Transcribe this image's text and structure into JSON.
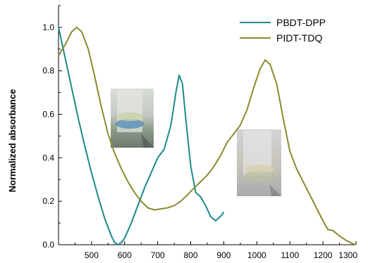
{
  "chart_data": {
    "type": "line",
    "xlabel": "",
    "ylabel": "Normalized absorbance",
    "xlim": [
      400,
      1300
    ],
    "ylim": [
      0,
      1.1
    ],
    "x_ticks": [
      "500",
      "600",
      "700",
      "800",
      "900",
      "1000",
      "1100",
      "1200",
      "1300"
    ],
    "y_ticks": [
      "0.0",
      "0.2",
      "0.4",
      "0.6",
      "0.8",
      "1.0"
    ],
    "legend_position": "top-right",
    "grid": false,
    "insets": [
      "vial-photo",
      "vial-photo"
    ],
    "series": [
      {
        "name": "PBDT-DPP",
        "color": "#1a8a8a",
        "points": [
          [
            400,
            1.0
          ],
          [
            420,
            0.86
          ],
          [
            440,
            0.72
          ],
          [
            460,
            0.58
          ],
          [
            480,
            0.45
          ],
          [
            500,
            0.33
          ],
          [
            520,
            0.22
          ],
          [
            540,
            0.12
          ],
          [
            560,
            0.04
          ],
          [
            570,
            0.01
          ],
          [
            580,
            0.0
          ],
          [
            590,
            0.01
          ],
          [
            600,
            0.03
          ],
          [
            620,
            0.1
          ],
          [
            640,
            0.18
          ],
          [
            660,
            0.26
          ],
          [
            680,
            0.33
          ],
          [
            700,
            0.4
          ],
          [
            720,
            0.44
          ],
          [
            740,
            0.55
          ],
          [
            755,
            0.7
          ],
          [
            765,
            0.78
          ],
          [
            775,
            0.74
          ],
          [
            785,
            0.58
          ],
          [
            800,
            0.36
          ],
          [
            815,
            0.24
          ],
          [
            830,
            0.22
          ],
          [
            845,
            0.18
          ],
          [
            860,
            0.13
          ],
          [
            875,
            0.11
          ],
          [
            890,
            0.13
          ],
          [
            900,
            0.15
          ]
        ]
      },
      {
        "name": "PIDT-TDQ",
        "color": "#8a8a2e",
        "points": [
          [
            400,
            0.87
          ],
          [
            420,
            0.92
          ],
          [
            440,
            0.98
          ],
          [
            455,
            1.0
          ],
          [
            470,
            0.98
          ],
          [
            490,
            0.9
          ],
          [
            510,
            0.77
          ],
          [
            530,
            0.63
          ],
          [
            550,
            0.51
          ],
          [
            570,
            0.42
          ],
          [
            590,
            0.35
          ],
          [
            610,
            0.29
          ],
          [
            630,
            0.24
          ],
          [
            650,
            0.2
          ],
          [
            670,
            0.17
          ],
          [
            690,
            0.16
          ],
          [
            710,
            0.165
          ],
          [
            730,
            0.17
          ],
          [
            750,
            0.18
          ],
          [
            770,
            0.2
          ],
          [
            790,
            0.23
          ],
          [
            810,
            0.26
          ],
          [
            830,
            0.29
          ],
          [
            850,
            0.32
          ],
          [
            870,
            0.36
          ],
          [
            890,
            0.41
          ],
          [
            910,
            0.47
          ],
          [
            930,
            0.51
          ],
          [
            950,
            0.55
          ],
          [
            970,
            0.62
          ],
          [
            990,
            0.72
          ],
          [
            1010,
            0.81
          ],
          [
            1025,
            0.85
          ],
          [
            1040,
            0.83
          ],
          [
            1060,
            0.74
          ],
          [
            1080,
            0.58
          ],
          [
            1100,
            0.43
          ],
          [
            1120,
            0.35
          ],
          [
            1140,
            0.29
          ],
          [
            1160,
            0.23
          ],
          [
            1180,
            0.17
          ],
          [
            1200,
            0.11
          ],
          [
            1215,
            0.07
          ],
          [
            1230,
            0.065
          ],
          [
            1250,
            0.04
          ],
          [
            1270,
            0.02
          ],
          [
            1290,
            0.005
          ],
          [
            1300,
            0.0
          ]
        ]
      }
    ]
  }
}
